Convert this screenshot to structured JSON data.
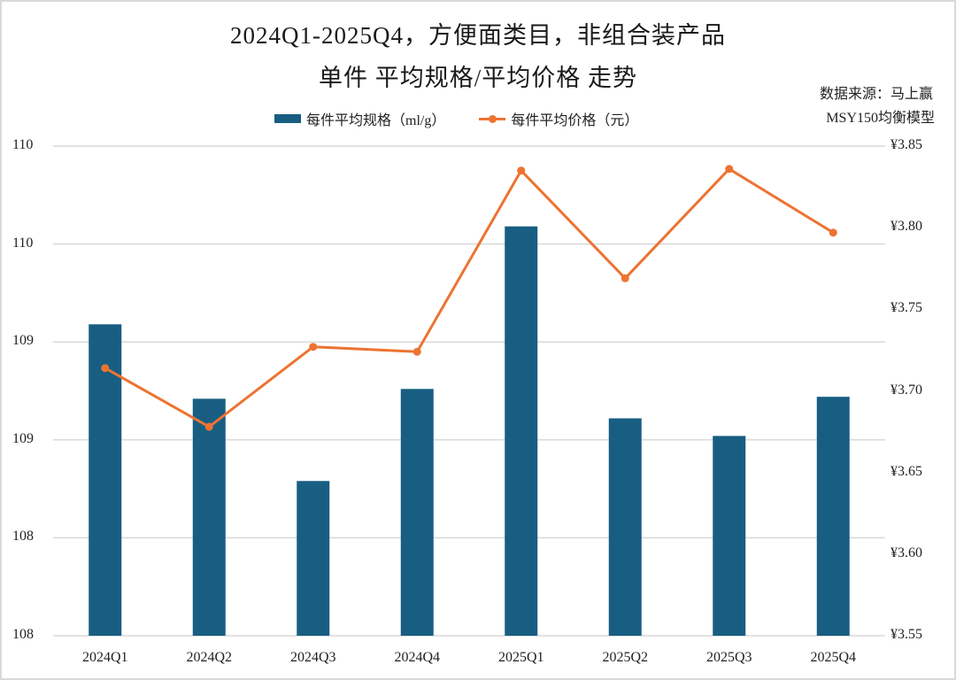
{
  "title": {
    "line1": "2024Q1-2025Q4，方便面类目，非组合装产品",
    "line2": "单件 平均规格/平均价格 走势"
  },
  "source": {
    "line1": "数据来源：马上赢",
    "line2": "MSY150均衡模型"
  },
  "legend": [
    {
      "label": "每件平均规格（ml/g）",
      "type": "bar",
      "color": "#175E82"
    },
    {
      "label": "每件平均价格（元）",
      "type": "line",
      "color": "#ED7331"
    }
  ],
  "axes": {
    "left_ticks": [
      "110",
      "110",
      "109",
      "109",
      "108",
      "108"
    ],
    "right_ticks": [
      "¥3.85",
      "¥3.80",
      "¥3.75",
      "¥3.70",
      "¥3.65",
      "¥3.60",
      "¥3.55"
    ],
    "x_ticks": [
      "2024Q1",
      "2024Q2",
      "2024Q3",
      "2024Q4",
      "2025Q1",
      "2025Q2",
      "2025Q3",
      "2025Q4"
    ]
  },
  "chart_data": {
    "type": "bar",
    "title": "2024Q1-2025Q4，方便面类目，非组合装产品 单件 平均规格/平均价格 走势",
    "categories": [
      "2024Q1",
      "2024Q2",
      "2024Q3",
      "2024Q4",
      "2025Q1",
      "2025Q2",
      "2025Q3",
      "2025Q4"
    ],
    "series": [
      {
        "name": "每件平均规格（ml/g）",
        "type": "bar",
        "axis": "left",
        "color": "#175E82",
        "values": [
          109.09,
          108.71,
          108.29,
          108.76,
          109.59,
          108.61,
          108.52,
          108.72
        ]
      },
      {
        "name": "每件平均价格（元）",
        "type": "line",
        "axis": "right",
        "color": "#ED7331",
        "values": [
          3.714,
          3.678,
          3.727,
          3.724,
          3.835,
          3.769,
          3.836,
          3.797
        ]
      }
    ],
    "ylim_left": [
      107.5,
      110.0
    ],
    "ylim_right": [
      3.55,
      3.85
    ],
    "xlabel": "",
    "ylabel": "",
    "ylabel_right": "",
    "grid": true,
    "legend_position": "top",
    "annotation": "数据来源：马上赢 MSY150均衡模型"
  }
}
